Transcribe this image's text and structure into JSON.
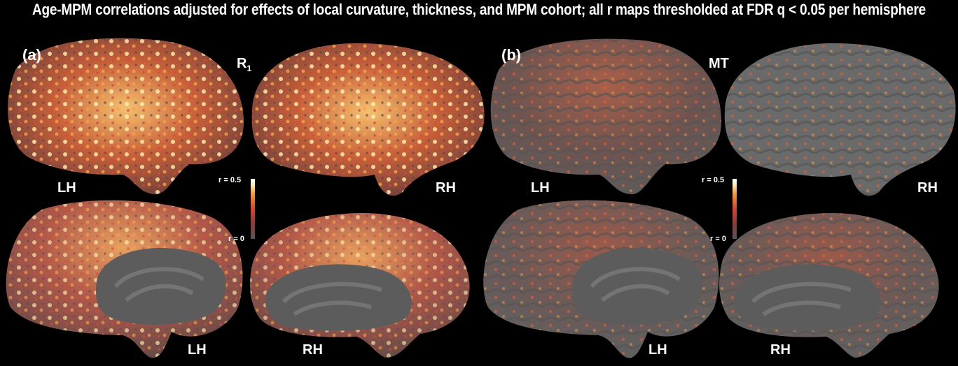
{
  "title": "Age-MPM correlations adjusted for effects of local curvature, thickness, and MPM cohort; all r maps thresholded at FDR q < 0.05 per hemisphere",
  "panels": [
    {
      "letter": "(a)",
      "map": "R",
      "map_subscript": "1",
      "colorbar": {
        "max_label": "r = 0.5",
        "min_label": "r = 0"
      },
      "hemispheres": {
        "lateral_left": "LH",
        "lateral_right": "RH",
        "medial_left": "LH",
        "medial_right": "RH"
      }
    },
    {
      "letter": "(b)",
      "map": "MT",
      "colorbar": {
        "max_label": "r = 0.5",
        "min_label": "r = 0"
      },
      "hemispheres": {
        "lateral_left": "LH",
        "lateral_right": "RH",
        "medial_left": "LH",
        "medial_right": "RH"
      }
    }
  ],
  "colors": {
    "background": "#000000",
    "cortex_gray": "#6a6a6a",
    "medial_wall": "#5a5a5a",
    "hot_low": "#c8402a",
    "hot_high": "#fff5c0"
  }
}
